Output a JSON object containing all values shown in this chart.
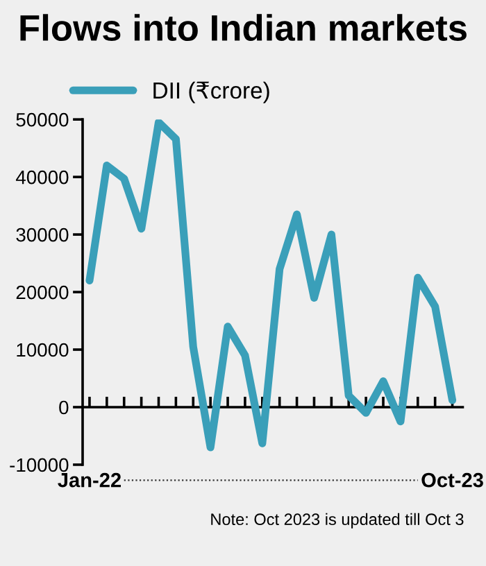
{
  "chart_data": {
    "type": "line",
    "title": "Flows into Indian markets",
    "categories": [
      "Jan-22",
      null,
      null,
      null,
      null,
      null,
      null,
      null,
      null,
      null,
      null,
      null,
      null,
      null,
      null,
      null,
      null,
      null,
      null,
      null,
      null,
      "Oct-23"
    ],
    "series": [
      {
        "name": "DII (₹crore)",
        "color": "#3a9fb9",
        "values": [
          22000,
          42000,
          39700,
          31000,
          49500,
          46600,
          10500,
          -7000,
          14000,
          9000,
          -6300,
          24000,
          33500,
          19000,
          30000,
          2000,
          -1000,
          4500,
          -2500,
          22500,
          17500,
          1200
        ]
      }
    ],
    "ylim": [
      -10000,
      50000
    ],
    "yticks": [
      -10000,
      0,
      10000,
      20000,
      30000,
      40000,
      50000
    ],
    "ref_lines": [
      {
        "axis": "y",
        "value": 0,
        "color": "#000000"
      }
    ],
    "grid": false,
    "legend": "top left",
    "marker": "none",
    "line_style": "solid",
    "annotations": [
      "Note: Oct 2023 is updated till Oct 3"
    ]
  }
}
